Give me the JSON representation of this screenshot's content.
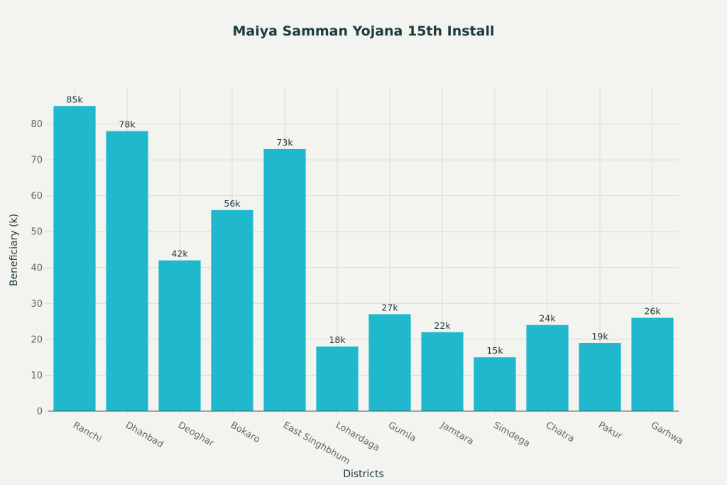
{
  "chart_data": {
    "type": "bar",
    "title": "Maiya Samman Yojana 15th Install",
    "xlabel": "Districts",
    "ylabel": "Beneficiary (k)",
    "categories": [
      "Ranchi",
      "Dhanbad",
      "Deoghar",
      "Bokaro",
      "East Singhbhum",
      "Lohardaga",
      "Gumla",
      "Jamtara",
      "Simdega",
      "Chatra",
      "Pakur",
      "Garhwa"
    ],
    "values": [
      85,
      78,
      42,
      56,
      73,
      18,
      27,
      22,
      15,
      24,
      19,
      26
    ],
    "data_labels": [
      "85k",
      "78k",
      "42k",
      "56k",
      "73k",
      "18k",
      "27k",
      "22k",
      "15k",
      "24k",
      "19k",
      "26k"
    ],
    "yticks": [
      0,
      10,
      20,
      30,
      40,
      50,
      60,
      70,
      80
    ],
    "ylim": [
      0,
      90
    ],
    "grid": true,
    "bar_color": "#1fb8cd"
  }
}
